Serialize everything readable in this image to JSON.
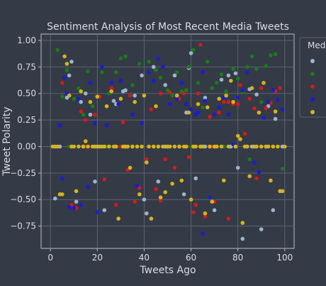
{
  "chart_data": {
    "type": "scatter",
    "title": "Sentiment Analysis of Most Recent Media Tweets",
    "xlabel": "Tweets Ago",
    "ylabel": "Tweet Polarity",
    "xlim": [
      -4,
      104
    ],
    "ylim": [
      -0.96,
      1.06
    ],
    "x_ticks": [
      0,
      20,
      40,
      60,
      80,
      100
    ],
    "y_ticks": [
      1.0,
      0.75,
      0.5,
      0.25,
      0.0,
      -0.25,
      -0.5,
      -0.75
    ],
    "x_tick_labels": [
      "0",
      "20",
      "40",
      "60",
      "80",
      "100"
    ],
    "y_tick_labels": [
      "1.00",
      "0.75",
      "0.50",
      "0.25",
      "0.00",
      "−0.25",
      "−0.50",
      "−0.75"
    ],
    "grid": true,
    "legend": {
      "title": "Med",
      "placement": "right, partially cut off"
    },
    "series": [
      {
        "color": "#9db4cc",
        "points": [
          [
            2,
            -0.49
          ],
          [
            8,
            0.67
          ],
          [
            9,
            0.8
          ],
          [
            11,
            -0.52
          ],
          [
            13,
            0.42
          ],
          [
            15,
            0.5
          ],
          [
            17,
            0.3
          ],
          [
            19,
            -0.33
          ],
          [
            23,
            -0.6
          ],
          [
            27,
            0.43
          ],
          [
            31,
            0.52
          ],
          [
            32,
            0.53
          ],
          [
            36,
            0.48
          ],
          [
            39,
            0.67
          ],
          [
            40,
            -0.5
          ],
          [
            44,
            0.75
          ],
          [
            46,
            -0.33
          ],
          [
            49,
            0.58
          ],
          [
            53,
            0.67
          ],
          [
            57,
            -0.45
          ],
          [
            59,
            0.74
          ],
          [
            60,
            0.88
          ],
          [
            62,
            -0.3
          ],
          [
            66,
            0.46
          ],
          [
            70,
            -0.6
          ],
          [
            73,
            0.63
          ],
          [
            76,
            0.67
          ],
          [
            79,
            0.69
          ],
          [
            82,
            -0.87
          ],
          [
            85,
            0.54
          ],
          [
            88,
            0.49
          ],
          [
            90,
            -0.78
          ],
          [
            93,
            0.38
          ],
          [
            95,
            -0.6
          ],
          [
            98,
            -0.42
          ],
          [
            4,
            0.0
          ],
          [
            14,
            0.0
          ],
          [
            20,
            0.0
          ],
          [
            32,
            0.0
          ],
          [
            49,
            0.0
          ],
          [
            55,
            0.0
          ],
          [
            66,
            0.0
          ],
          [
            77,
            0.0
          ],
          [
            86,
            0.0
          ],
          [
            92,
            0.0
          ],
          [
            99,
            0.0
          ],
          [
            7,
            0.46
          ],
          [
            28,
            0.4
          ],
          [
            41,
            -0.63
          ],
          [
            58,
            0.32
          ],
          [
            80,
            -0.2
          ],
          [
            96,
            0.26
          ]
        ]
      },
      {
        "color": "#1a7a1a",
        "points": [
          [
            3,
            0.91
          ],
          [
            5,
            0.47
          ],
          [
            7,
            0.72
          ],
          [
            10,
            0.45
          ],
          [
            12,
            0.55
          ],
          [
            14,
            0.3
          ],
          [
            16,
            0.71
          ],
          [
            18,
            0.38
          ],
          [
            22,
            0.7
          ],
          [
            25,
            0.5
          ],
          [
            28,
            0.7
          ],
          [
            30,
            0.83
          ],
          [
            32,
            0.85
          ],
          [
            35,
            0.58
          ],
          [
            38,
            0.78
          ],
          [
            42,
            0.8
          ],
          [
            45,
            0.72
          ],
          [
            47,
            0.65
          ],
          [
            50,
            0.53
          ],
          [
            52,
            0.48
          ],
          [
            54,
            0.7
          ],
          [
            56,
            0.52
          ],
          [
            58,
            0.53
          ],
          [
            59,
            0.75
          ],
          [
            61,
            0.91
          ],
          [
            63,
            0.6
          ],
          [
            65,
            0.37
          ],
          [
            67,
            0.8
          ],
          [
            69,
            0.55
          ],
          [
            71,
            0.6
          ],
          [
            73,
            0.68
          ],
          [
            75,
            0.52
          ],
          [
            78,
            0.73
          ],
          [
            80,
            0.64
          ],
          [
            82,
            0.51
          ],
          [
            84,
            0.75
          ],
          [
            86,
            0.85
          ],
          [
            88,
            0.73
          ],
          [
            90,
            0.42
          ],
          [
            92,
            0.76
          ],
          [
            94,
            0.86
          ],
          [
            96,
            0.87
          ],
          [
            99,
            -0.21
          ],
          [
            85,
            -0.12
          ],
          [
            8,
            0.0
          ],
          [
            24,
            0.0
          ],
          [
            39,
            0.0
          ],
          [
            60,
            0.0
          ],
          [
            74,
            0.0
          ],
          [
            93,
            0.0
          ]
        ]
      },
      {
        "color": "#d41a1a",
        "points": [
          [
            5,
            0.6
          ],
          [
            9,
            -0.55
          ],
          [
            13,
            0.33
          ],
          [
            15,
            0.25
          ],
          [
            19,
            0.3
          ],
          [
            21,
            0.47
          ],
          [
            23,
            -0.31
          ],
          [
            26,
            0.55
          ],
          [
            28,
            -0.55
          ],
          [
            31,
            0.23
          ],
          [
            34,
            0.48
          ],
          [
            36,
            -0.52
          ],
          [
            38,
            -0.39
          ],
          [
            41,
            -0.12
          ],
          [
            43,
            0.35
          ],
          [
            45,
            -0.4
          ],
          [
            47,
            0.5
          ],
          [
            49,
            -0.12
          ],
          [
            51,
            0.51
          ],
          [
            53,
            -0.2
          ],
          [
            55,
            0.45
          ],
          [
            57,
            0.5
          ],
          [
            59,
            -0.1
          ],
          [
            61,
            -0.62
          ],
          [
            63,
            0.5
          ],
          [
            64,
            0.96
          ],
          [
            66,
            -0.66
          ],
          [
            68,
            0.28
          ],
          [
            70,
            -0.52
          ],
          [
            72,
            0.32
          ],
          [
            74,
            0.42
          ],
          [
            76,
            0.42
          ],
          [
            78,
            0.4
          ],
          [
            80,
            0.4
          ],
          [
            81,
            0.58
          ],
          [
            83,
            0.12
          ],
          [
            85,
            0.45
          ],
          [
            87,
            0.36
          ],
          [
            88,
            -0.3
          ],
          [
            90,
            0.55
          ],
          [
            92,
            0.36
          ],
          [
            94,
            0.41
          ],
          [
            96,
            0.52
          ],
          [
            98,
            0.55
          ],
          [
            15,
            0.0
          ],
          [
            30,
            0.0
          ],
          [
            44,
            0.0
          ],
          [
            58,
            0.0
          ],
          [
            69,
            0.0
          ],
          [
            83,
            0.0
          ],
          [
            95,
            0.0
          ],
          [
            11,
            -0.58
          ],
          [
            33,
            -0.22
          ],
          [
            47,
            -0.51
          ],
          [
            62,
            -0.55
          ],
          [
            76,
            -0.68
          ]
        ]
      },
      {
        "color": "#1a1adb",
        "points": [
          [
            4,
            0.2
          ],
          [
            5,
            -0.3
          ],
          [
            6,
            0.65
          ],
          [
            7,
            0.5
          ],
          [
            8,
            -0.57
          ],
          [
            10,
            -0.58
          ],
          [
            12,
            0.45
          ],
          [
            13,
            -0.55
          ],
          [
            16,
            -0.38
          ],
          [
            17,
            0.6
          ],
          [
            19,
            0.22
          ],
          [
            20,
            -0.62
          ],
          [
            22,
            0.75
          ],
          [
            24,
            0.2
          ],
          [
            26,
            0.6
          ],
          [
            29,
            0.4
          ],
          [
            30,
            0.62
          ],
          [
            33,
            0.0
          ],
          [
            35,
            0.3
          ],
          [
            37,
            -0.37
          ],
          [
            39,
            0.22
          ],
          [
            42,
            0.7
          ],
          [
            44,
            0.62
          ],
          [
            46,
            0.83
          ],
          [
            48,
            0.75
          ],
          [
            51,
            0.4
          ],
          [
            54,
            0.45
          ],
          [
            56,
            0.6
          ],
          [
            58,
            0.4
          ],
          [
            60,
            0.35
          ],
          [
            62,
            0.3
          ],
          [
            63,
            0.32
          ],
          [
            65,
            0.7
          ],
          [
            66,
            0.43
          ],
          [
            68,
            -0.48
          ],
          [
            70,
            0.3
          ],
          [
            72,
            0.37
          ],
          [
            74,
            0.46
          ],
          [
            76,
            0.3
          ],
          [
            78,
            0.02
          ],
          [
            80,
            0.46
          ],
          [
            82,
            0.53
          ],
          [
            84,
            0.7
          ],
          [
            86,
            0.55
          ],
          [
            87,
            -0.15
          ],
          [
            89,
            -0.24
          ],
          [
            91,
            0.27
          ],
          [
            93,
            0.42
          ],
          [
            95,
            0.53
          ],
          [
            97,
            0.44
          ],
          [
            99,
            0.35
          ],
          [
            65,
            -0.82
          ],
          [
            12,
            0.0
          ],
          [
            27,
            0.0
          ],
          [
            53,
            0.0
          ],
          [
            71,
            0.0
          ],
          [
            88,
            0.0
          ]
        ]
      },
      {
        "color": "#d6b41a",
        "points": [
          [
            1,
            0.0
          ],
          [
            2,
            0.0
          ],
          [
            3,
            0.0
          ],
          [
            4,
            -0.45
          ],
          [
            5,
            -0.45
          ],
          [
            6,
            0.85
          ],
          [
            7,
            0.78
          ],
          [
            8,
            0.48
          ],
          [
            9,
            0.0
          ],
          [
            10,
            0.0
          ],
          [
            11,
            -0.42
          ],
          [
            12,
            0.0
          ],
          [
            13,
            0.52
          ],
          [
            14,
            0.0
          ],
          [
            15,
            0.05
          ],
          [
            16,
            0.0
          ],
          [
            17,
            0.42
          ],
          [
            18,
            0.0
          ],
          [
            19,
            0.0
          ],
          [
            20,
            0.47
          ],
          [
            21,
            0.0
          ],
          [
            22,
            0.0
          ],
          [
            23,
            0.0
          ],
          [
            24,
            0.38
          ],
          [
            25,
            0.0
          ],
          [
            26,
            0.52
          ],
          [
            27,
            0.0
          ],
          [
            28,
            0.0
          ],
          [
            29,
            -0.68
          ],
          [
            30,
            0.45
          ],
          [
            31,
            0.0
          ],
          [
            32,
            0.0
          ],
          [
            33,
            0.0
          ],
          [
            34,
            -0.2
          ],
          [
            35,
            0.0
          ],
          [
            36,
            0.42
          ],
          [
            37,
            0.0
          ],
          [
            38,
            -0.45
          ],
          [
            39,
            0.0
          ],
          [
            40,
            0.48
          ],
          [
            41,
            -0.15
          ],
          [
            42,
            0.0
          ],
          [
            43,
            -0.68
          ],
          [
            44,
            0.0
          ],
          [
            45,
            0.38
          ],
          [
            46,
            0.0
          ],
          [
            47,
            -0.48
          ],
          [
            48,
            0.0
          ],
          [
            49,
            -0.43
          ],
          [
            50,
            0.0
          ],
          [
            51,
            0.0
          ],
          [
            52,
            -0.35
          ],
          [
            53,
            0.0
          ],
          [
            54,
            0.48
          ],
          [
            55,
            0.0
          ],
          [
            56,
            -0.32
          ],
          [
            57,
            0.0
          ],
          [
            58,
            0.0
          ],
          [
            59,
            0.32
          ],
          [
            60,
            -0.5
          ],
          [
            61,
            0.0
          ],
          [
            62,
            0.0
          ],
          [
            63,
            0.4
          ],
          [
            64,
            0.0
          ],
          [
            65,
            0.0
          ],
          [
            66,
            -0.63
          ],
          [
            67,
            0.37
          ],
          [
            68,
            0.0
          ],
          [
            69,
            -0.52
          ],
          [
            70,
            0.0
          ],
          [
            71,
            0.0
          ],
          [
            72,
            0.45
          ],
          [
            73,
            0.0
          ],
          [
            74,
            -0.32
          ],
          [
            75,
            0.48
          ],
          [
            76,
            0.0
          ],
          [
            77,
            0.62
          ],
          [
            78,
            0.42
          ],
          [
            79,
            0.0
          ],
          [
            80,
            0.1
          ],
          [
            81,
            0.07
          ],
          [
            82,
            -0.72
          ],
          [
            83,
            0.0
          ],
          [
            84,
            0.0
          ],
          [
            85,
            -0.28
          ],
          [
            86,
            0.55
          ],
          [
            87,
            0.0
          ],
          [
            88,
            0.0
          ],
          [
            89,
            0.32
          ],
          [
            90,
            0.0
          ],
          [
            91,
            0.6
          ],
          [
            92,
            0.0
          ],
          [
            93,
            0.0
          ],
          [
            94,
            -0.32
          ],
          [
            95,
            0.0
          ],
          [
            96,
            0.33
          ],
          [
            97,
            0.0
          ],
          [
            98,
            -0.42
          ],
          [
            99,
            -0.42
          ],
          [
            100,
            0.0
          ]
        ]
      }
    ]
  }
}
